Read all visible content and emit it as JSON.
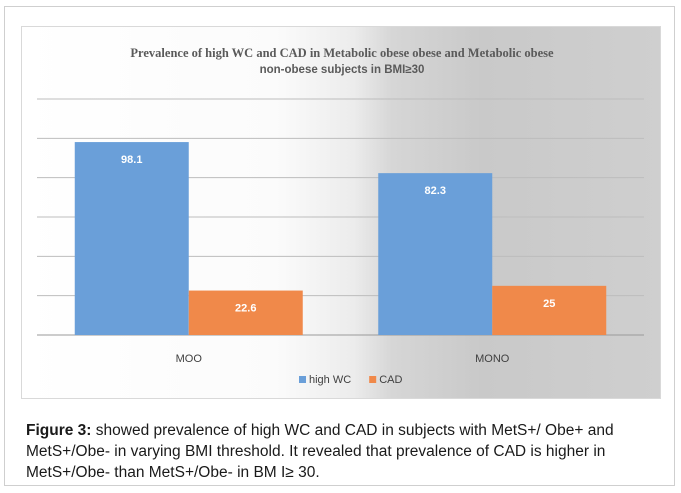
{
  "chart_data": {
    "type": "bar",
    "title_line1": "Prevalence of high WC and CAD in Metabolic obese obese and Metabolic obese",
    "title_line2": "non-obese subjects in BMI≥30",
    "categories": [
      "MOO",
      "MONO"
    ],
    "series": [
      {
        "name": "high WC",
        "color": "#6a9fd9",
        "values": [
          98.1,
          82.3
        ]
      },
      {
        "name": "CAD",
        "color": "#f0894a",
        "values": [
          22.6,
          25
        ]
      }
    ],
    "ylim": [
      0,
      120
    ],
    "grid": true,
    "legend_position": "bottom"
  },
  "caption": {
    "label": "Figure 3:",
    "text": " showed prevalence of high WC and CAD in subjects with MetS+/ Obe+ and MetS+/Obe- in varying BMI threshold. It revealed that prevalence of CAD is higher in MetS+/Obe- than MetS+/Obe- in BM I≥ 30."
  }
}
